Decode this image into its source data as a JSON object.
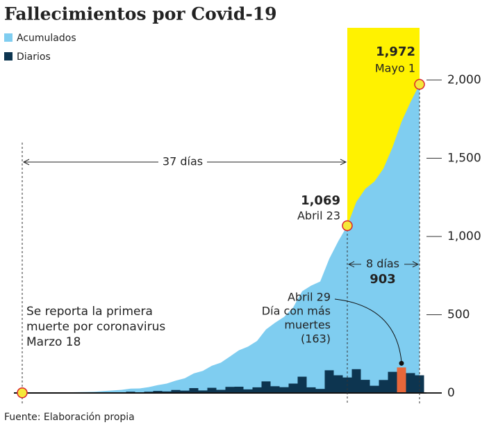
{
  "chart_data": {
    "type": "area-bar",
    "title": "Fallecimientos por Covid-19",
    "source": "Fuente: Elaboración propia",
    "series": [
      {
        "name": "Acumulados",
        "color": "#7fcdf0",
        "values": [
          1,
          1,
          1,
          2,
          2,
          4,
          5,
          6,
          8,
          12,
          16,
          20,
          28,
          29,
          37,
          50,
          60,
          79,
          94,
          125,
          141,
          174,
          194,
          233,
          273,
          296,
          332,
          406,
          449,
          486,
          546,
          650,
          686,
          712,
          857,
          970,
          1069,
          1221,
          1305,
          1351,
          1434,
          1569,
          1732,
          1859,
          1972
        ]
      },
      {
        "name": "Diarios",
        "color": "#0d3550",
        "highlight_color": "#e8673a",
        "values": [
          1,
          0,
          0,
          1,
          0,
          2,
          1,
          1,
          2,
          4,
          4,
          4,
          8,
          1,
          8,
          13,
          10,
          19,
          15,
          31,
          16,
          33,
          20,
          39,
          40,
          23,
          36,
          74,
          43,
          37,
          60,
          104,
          36,
          26,
          145,
          113,
          99,
          152,
          84,
          46,
          83,
          135,
          163,
          127,
          113
        ]
      }
    ],
    "ylim": [
      0,
      2000
    ],
    "yticks": [
      0,
      500,
      {
        "value": 1000,
        "label": "1,000"
      },
      {
        "value": 1500,
        "label": "1,500"
      },
      {
        "value": 2000,
        "label": "2,000"
      }
    ],
    "period_color": "#fff200",
    "annotations": {
      "last": {
        "value": "1,972",
        "date": "Mayo 1"
      },
      "mid": {
        "value": "1,069",
        "date": "Abril 23"
      },
      "span1": "37 días",
      "span2": "8 días",
      "span2_value": "903",
      "peak": [
        "Abril 29",
        "Día con más",
        "muertes",
        "(163)"
      ],
      "first": [
        "Se reporta la primera",
        "muerte por coronavirus",
        "Marzo 18"
      ]
    }
  }
}
